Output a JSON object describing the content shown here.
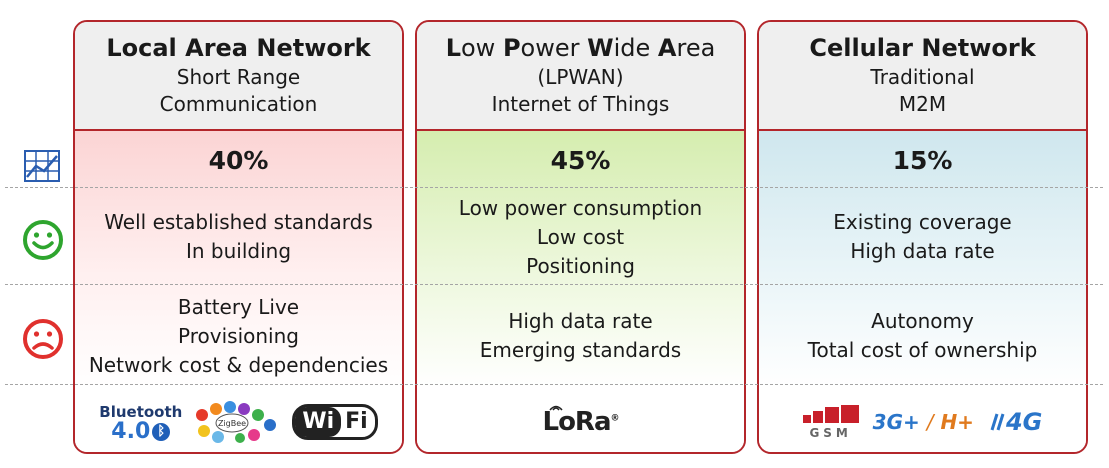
{
  "columns": [
    {
      "title": "Local Area Network",
      "subtitle": [
        "Short Range",
        "Communication"
      ],
      "share": "40%",
      "pros": [
        "Well established standards",
        "In building"
      ],
      "cons": [
        "Battery Live",
        "Provisioning",
        "Network cost & dependencies"
      ],
      "logos": [
        "Bluetooth",
        "4.0",
        "ZigBee",
        "Wi",
        "Fi"
      ]
    },
    {
      "title_parts": [
        {
          "bold": "L",
          "rest": "ow "
        },
        {
          "bold": "P",
          "rest": "ower "
        },
        {
          "bold": "W",
          "rest": "ide "
        },
        {
          "bold": "A",
          "rest": "rea"
        }
      ],
      "subtitle": [
        "(LPWAN)",
        "Internet of Things"
      ],
      "share": "45%",
      "pros": [
        "Low power consumption",
        "Low cost",
        "Positioning"
      ],
      "cons": [
        "High data rate",
        "Emerging standards"
      ],
      "logos": [
        "LoRa"
      ]
    },
    {
      "title": "Cellular Network",
      "subtitle": [
        "Traditional",
        "M2M"
      ],
      "share": "15%",
      "pros": [
        "Existing coverage",
        "High data rate"
      ],
      "cons": [
        "Autonomy",
        "Total cost of ownership"
      ],
      "logos": [
        "GSM",
        "3G+",
        "/",
        "H+",
        "4G"
      ]
    }
  ],
  "row_icons": [
    "chart-icon",
    "smiley-happy-icon",
    "smiley-sad-icon"
  ],
  "colors": {
    "border": "#b3262b",
    "happy": "#2ea52e",
    "sad": "#e0302d",
    "chart": "#2a5db0"
  }
}
